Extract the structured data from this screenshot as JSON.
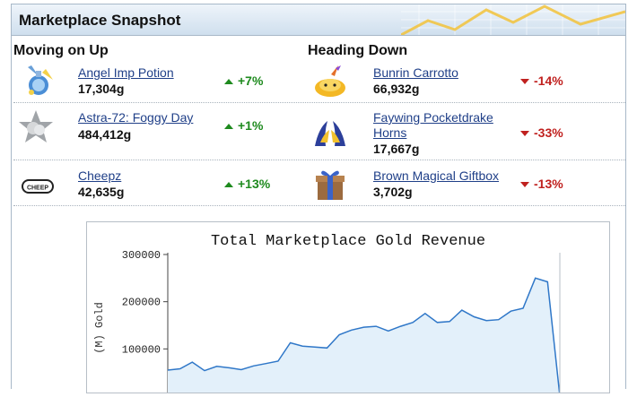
{
  "panel": {
    "title": "Marketplace Snapshot"
  },
  "moving_up": {
    "heading": "Moving on Up",
    "items": [
      {
        "name": "Angel Imp Potion",
        "price": "17,304g",
        "change": "+7%",
        "icon": "angel-imp-potion-icon"
      },
      {
        "name": "Astra-72: Foggy Day",
        "price": "484,412g",
        "change": "+1%",
        "icon": "astra-star-icon"
      },
      {
        "name": "Cheepz",
        "price": "42,635g",
        "change": "+13%",
        "icon": "cheep-badge-icon"
      }
    ]
  },
  "heading_down": {
    "heading": "Heading Down",
    "items": [
      {
        "name_lines": [
          "Bunrin Carrotto"
        ],
        "price": "66,932g",
        "change": "-14%",
        "icon": "bunrin-carrotto-icon"
      },
      {
        "name_lines": [
          "Faywing Pocketdrake",
          "Horns"
        ],
        "price": "17,667g",
        "change": "-33%",
        "icon": "faywing-horns-icon"
      },
      {
        "name_lines": [
          "Brown Magical Giftbox"
        ],
        "price": "3,702g",
        "change": "-13%",
        "icon": "giftbox-icon"
      }
    ]
  },
  "chart_data": {
    "type": "area",
    "title": "Total Marketplace Gold Revenue",
    "ylabel": "(M) Gold",
    "yticks": [
      "300000",
      "200000",
      "100000"
    ],
    "ylim": [
      0,
      300000
    ],
    "y": [
      55000,
      58000,
      72000,
      54000,
      63000,
      60000,
      56000,
      64000,
      69000,
      74000,
      113000,
      106000,
      104000,
      102000,
      130000,
      140000,
      146000,
      148000,
      138000,
      148000,
      156000,
      175000,
      156000,
      158000,
      182000,
      168000,
      160000,
      162000,
      180000,
      186000,
      250000,
      242000,
      0
    ],
    "colors": {
      "line": "#2f77c8",
      "fill": "#e3f0fa"
    }
  }
}
